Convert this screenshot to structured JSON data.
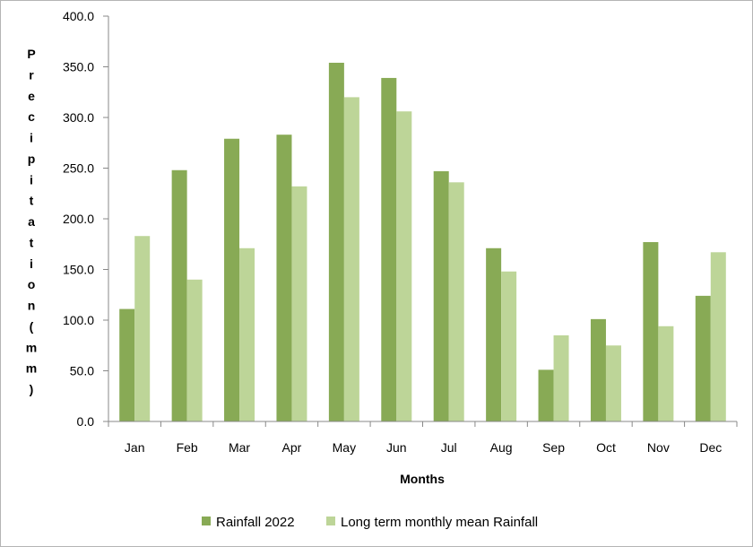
{
  "chart_data": {
    "type": "bar",
    "title": "",
    "xlabel": "Months",
    "ylabel": "Precipitation (mm)",
    "ylim": [
      0,
      400
    ],
    "yticks": [
      0,
      50,
      100,
      150,
      200,
      250,
      300,
      350,
      400
    ],
    "ytick_labels": [
      "0.0",
      "50.0",
      "100.0",
      "150.0",
      "200.0",
      "250.0",
      "300.0",
      "350.0",
      "400.0"
    ],
    "categories": [
      "Jan",
      "Feb",
      "Mar",
      "Apr",
      "May",
      "Jun",
      "Jul",
      "Aug",
      "Sep",
      "Oct",
      "Nov",
      "Dec"
    ],
    "series": [
      {
        "name": "Rainfall 2022",
        "color": "#88aa55",
        "values": [
          111,
          248,
          279,
          283,
          354,
          339,
          247,
          171,
          51,
          101,
          177,
          124
        ]
      },
      {
        "name": "Long term monthly mean Rainfall",
        "color": "#bdd598",
        "values": [
          183,
          140,
          171,
          232,
          320,
          306,
          236,
          148,
          85,
          75,
          94,
          167
        ]
      }
    ],
    "legend_position": "bottom",
    "grid": false
  }
}
